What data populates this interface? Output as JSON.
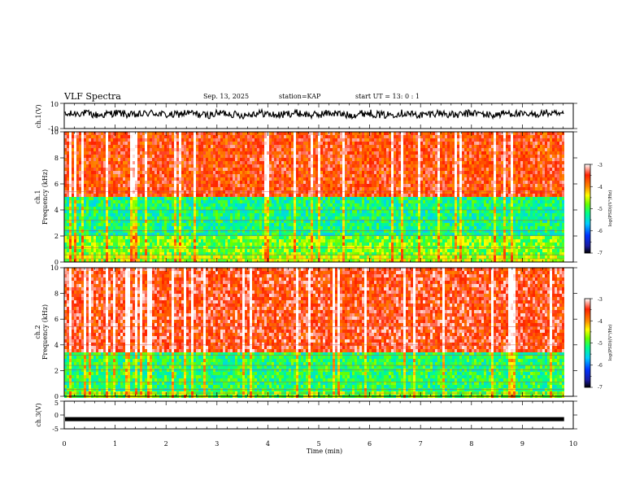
{
  "header": {
    "title": "VLF Spectra",
    "date": "Sep. 13, 2025",
    "station": "station=KAP",
    "start_ut": "start  UT  =   13: 0  : 1"
  },
  "colors": {
    "spectrum_scale": [
      "#000000",
      "#1a1aa0",
      "#0033ff",
      "#00ccff",
      "#00ff88",
      "#66ff00",
      "#ffff00",
      "#ff8800",
      "#ff2200",
      "#ffffff"
    ]
  },
  "chart_data": [
    {
      "type": "line",
      "title": "ch.1 waveform",
      "ylabel": "ch.1(V)",
      "ylim": [
        -10,
        10
      ],
      "ytick_labels": [
        "10",
        "-10"
      ],
      "xlim": [
        0,
        10
      ],
      "x_range_data_min": [
        0,
        9.82
      ],
      "description_values": {
        "baseline_v": 1.5,
        "amplitude_v": 3
      }
    },
    {
      "type": "heatmap",
      "ylabel": "ch.1",
      "ylabel2": "Frequency (kHz)",
      "ylim": [
        0,
        10
      ],
      "ytick_labels": [
        "0",
        "2",
        "4",
        "6",
        "8",
        "10"
      ],
      "xlim": [
        0,
        10
      ],
      "colorbar": {
        "label": "log(PSD)(V²/Hz)",
        "range": [
          -7,
          -3
        ],
        "tick_labels": [
          "-3",
          "-4",
          "-5",
          "-6",
          "-7"
        ]
      },
      "bands_khz": [
        {
          "from": 0,
          "to": 0.5,
          "level": -4.6
        },
        {
          "from": 0.5,
          "to": 2.0,
          "level": -4.8
        },
        {
          "from": 2.0,
          "to": 5.0,
          "level": -5.2
        },
        {
          "from": 5.0,
          "to": 10.0,
          "level": -3.6
        }
      ]
    },
    {
      "type": "heatmap",
      "ylabel": "ch.2",
      "ylabel2": "Frequency (kHz)",
      "ylim": [
        0,
        10
      ],
      "ytick_labels": [
        "0",
        "2",
        "4",
        "6",
        "8",
        "10"
      ],
      "xlim": [
        0,
        10
      ],
      "colorbar": {
        "label": "log(PSD)(V²/Hz)",
        "range": [
          -7,
          -3
        ],
        "tick_labels": [
          "-3",
          "-4",
          "-5",
          "-6",
          "-7"
        ]
      },
      "bands_khz": [
        {
          "from": 0,
          "to": 0.5,
          "level": -4.8
        },
        {
          "from": 0.5,
          "to": 3.5,
          "level": -5.1
        },
        {
          "from": 3.5,
          "to": 10.0,
          "level": -3.5
        }
      ]
    },
    {
      "type": "line",
      "title": "ch.3 waveform",
      "ylabel": "ch.3(V)",
      "ylim": [
        -5,
        5
      ],
      "ytick_labels": [
        "5",
        "0",
        "-5"
      ],
      "xlim": [
        0,
        10
      ],
      "description_values": {
        "baseline_v": -1.5
      }
    }
  ],
  "xaxis": {
    "label": "Time  (min)",
    "tick_labels": [
      "0",
      "1",
      "2",
      "3",
      "4",
      "5",
      "6",
      "7",
      "8",
      "9",
      "10"
    ],
    "data_end_min": 9.82
  }
}
